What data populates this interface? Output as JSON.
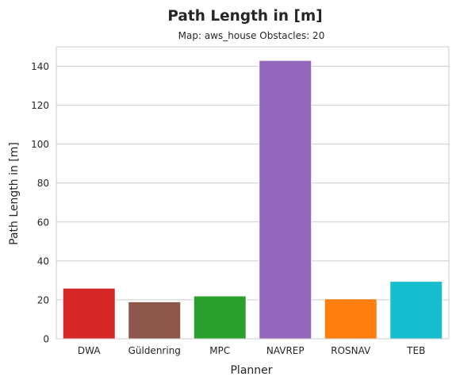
{
  "chart_data": {
    "type": "bar",
    "title": "Path Length in [m]",
    "subtitle": "Map: aws_house Obstacles: 20",
    "xlabel": "Planner",
    "ylabel": "Path Length in [m]",
    "categories": [
      "DWA",
      "Güldenring",
      "MPC",
      "NAVREP",
      "ROSNAV",
      "TEB"
    ],
    "values": [
      26,
      19,
      22,
      143,
      20.5,
      29.5
    ],
    "colors": [
      "#d62728",
      "#8c564b",
      "#2ca02c",
      "#9467bd",
      "#ff7f0e",
      "#17becf"
    ],
    "ylim": [
      0,
      150
    ],
    "yticks": [
      0,
      20,
      40,
      60,
      80,
      100,
      120,
      140
    ],
    "grid": "y"
  }
}
